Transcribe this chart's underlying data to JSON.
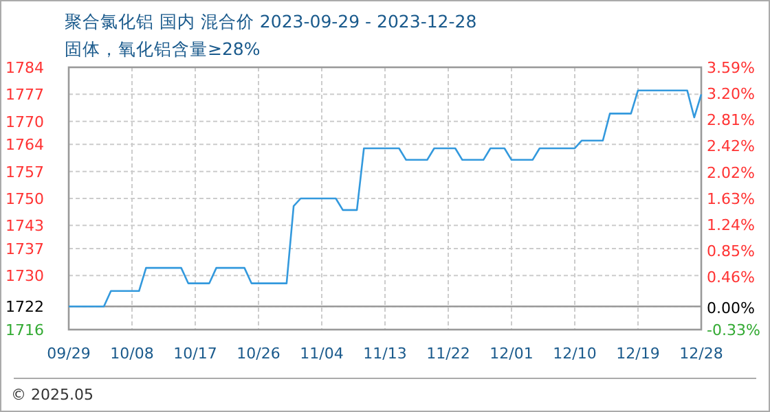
{
  "chart_data": {
    "type": "line",
    "title": "聚合氯化铝 国内 混合价 2023-09-29 - 2023-12-28",
    "subtitle": "固体，氧化铝含量≥28%",
    "x": [
      "2023-09-29",
      "2023-10-04",
      "2023-10-05",
      "2023-10-09",
      "2023-10-10",
      "2023-10-15",
      "2023-10-16",
      "2023-10-19",
      "2023-10-20",
      "2023-10-24",
      "2023-10-25",
      "2023-10-30",
      "2023-10-31",
      "2023-11-01",
      "2023-11-06",
      "2023-11-07",
      "2023-11-09",
      "2023-11-10",
      "2023-11-15",
      "2023-11-16",
      "2023-11-19",
      "2023-11-20",
      "2023-11-23",
      "2023-11-24",
      "2023-11-27",
      "2023-11-28",
      "2023-11-30",
      "2023-12-01",
      "2023-12-04",
      "2023-12-05",
      "2023-12-10",
      "2023-12-11",
      "2023-12-14",
      "2023-12-15",
      "2023-12-18",
      "2023-12-19",
      "2023-12-26",
      "2023-12-27",
      "2023-12-28"
    ],
    "series": [
      {
        "color": "#3399dd",
        "values": [
          1722,
          1722,
          1726,
          1726,
          1732,
          1732,
          1728,
          1728,
          1732,
          1732,
          1728,
          1728,
          1748,
          1750,
          1750,
          1747,
          1747,
          1763,
          1763,
          1760,
          1760,
          1763,
          1763,
          1760,
          1760,
          1763,
          1763,
          1760,
          1760,
          1763,
          1763,
          1765,
          1765,
          1772,
          1772,
          1778,
          1778,
          1771,
          1777
        ]
      }
    ],
    "xlim": [
      "2023-09-29",
      "2023-12-28"
    ],
    "xticks": [
      {
        "value": "2023-09-29",
        "label": "09/29"
      },
      {
        "value": "2023-10-08",
        "label": "10/08"
      },
      {
        "value": "2023-10-17",
        "label": "10/17"
      },
      {
        "value": "2023-10-26",
        "label": "10/26"
      },
      {
        "value": "2023-11-04",
        "label": "11/04"
      },
      {
        "value": "2023-11-13",
        "label": "11/13"
      },
      {
        "value": "2023-11-22",
        "label": "11/22"
      },
      {
        "value": "2023-12-01",
        "label": "12/01"
      },
      {
        "value": "2023-12-10",
        "label": "12/10"
      },
      {
        "value": "2023-12-19",
        "label": "12/19"
      },
      {
        "value": "2023-12-28",
        "label": "12/28"
      }
    ],
    "ylim": [
      1716,
      1784
    ],
    "yticks": [
      1716,
      1722,
      1730,
      1737,
      1743,
      1750,
      1757,
      1764,
      1770,
      1777,
      1784
    ],
    "y2lim": [
      -0.33,
      3.59
    ],
    "y2ticks": [
      {
        "value": -0.33,
        "label": "-0.33%"
      },
      {
        "value": 0,
        "label": "0.00%"
      },
      {
        "value": 0.46,
        "label": "0.46%"
      },
      {
        "value": 0.85,
        "label": "0.85%"
      },
      {
        "value": 1.24,
        "label": "1.24%"
      },
      {
        "value": 1.63,
        "label": "1.63%"
      },
      {
        "value": 2.02,
        "label": "2.02%"
      },
      {
        "value": 2.42,
        "label": "2.42%"
      },
      {
        "value": 2.81,
        "label": "2.81%"
      },
      {
        "value": 3.2,
        "label": "3.20%"
      },
      {
        "value": 3.59,
        "label": "3.59%"
      }
    ],
    "ref_lines": [
      {
        "axis": "y",
        "value": 1722,
        "color": "#999999"
      }
    ],
    "grid": true,
    "annotations": [
      "© 2025.05"
    ]
  }
}
